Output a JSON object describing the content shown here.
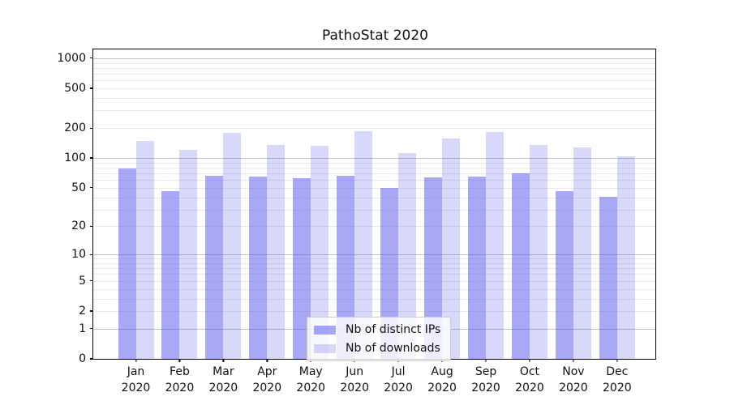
{
  "figure": {
    "title": "PathoStat 2020"
  },
  "chart_data": {
    "type": "bar",
    "title": "PathoStat 2020",
    "xlabel": "",
    "ylabel": "",
    "yscale": "log1p",
    "ylim": [
      0,
      1225
    ],
    "y_ticks": [
      0,
      1,
      2,
      5,
      10,
      20,
      50,
      100,
      200,
      500,
      1000
    ],
    "grid": true,
    "legend_position": "lower-center inside plot",
    "categories": [
      "Jan",
      "Feb",
      "Mar",
      "Apr",
      "May",
      "Jun",
      "Jul",
      "Aug",
      "Sep",
      "Oct",
      "Nov",
      "Dec"
    ],
    "category_year": "2020",
    "series": [
      {
        "name": "Nb of distinct IPs",
        "color": "rgba(70,70,235,0.47)",
        "values": [
          76,
          45,
          65,
          64,
          61,
          65,
          49,
          62,
          64,
          69,
          45,
          40
        ]
      },
      {
        "name": "Nb of downloads",
        "color": "rgba(70,70,235,0.21)",
        "values": [
          145,
          117,
          175,
          133,
          129,
          181,
          109,
          152,
          179,
          132,
          125,
          101
        ]
      }
    ],
    "colors": {
      "grid_major": "#c3c3c3",
      "grid_minor": "#eaeaea",
      "axis": "#000000",
      "text": "#111111"
    }
  }
}
